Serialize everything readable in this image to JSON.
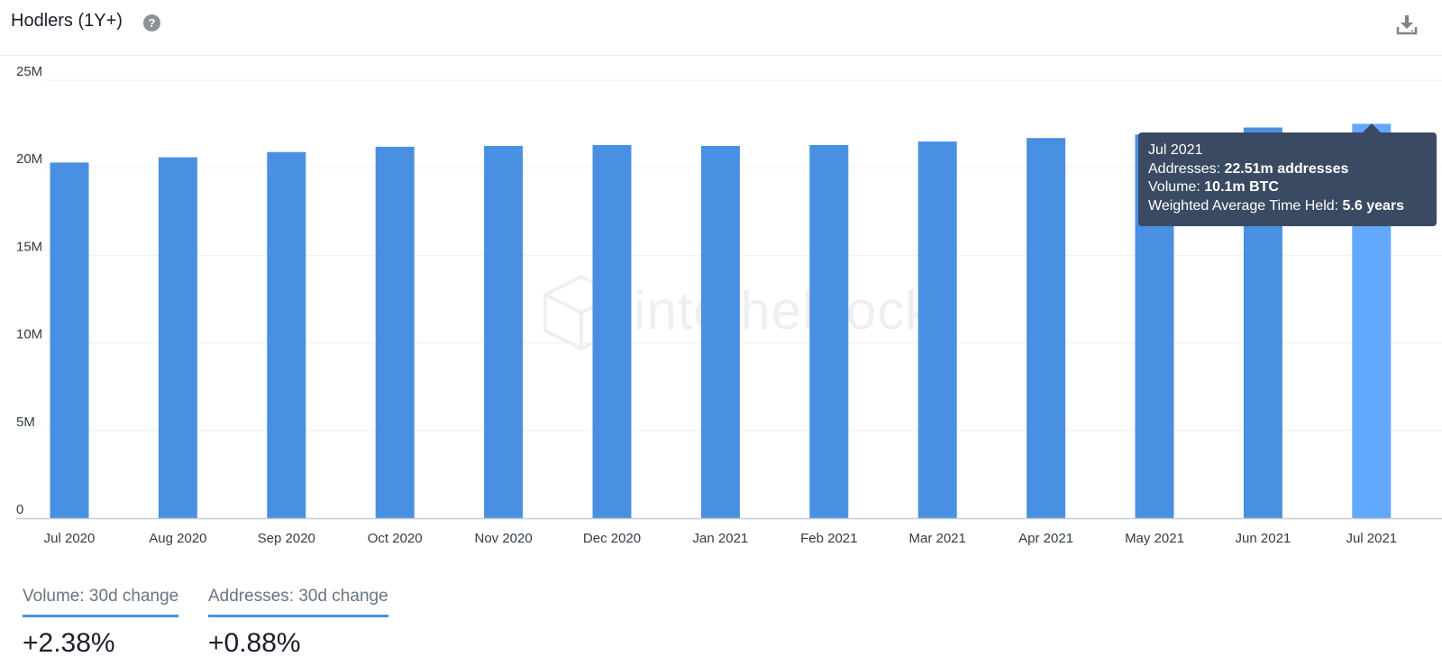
{
  "header": {
    "title": "Hodlers (1Y+)",
    "help_icon": "question-circle-icon",
    "download_icon": "download-icon"
  },
  "watermark": {
    "text": "intotheblock"
  },
  "tooltip": {
    "date": "Jul 2021",
    "addresses_label": "Addresses:",
    "addresses_value": "22.51m addresses",
    "volume_label": "Volume:",
    "volume_value": "10.1m BTC",
    "time_label": "Weighted Average Time Held:",
    "time_value": "5.6 years"
  },
  "stats": [
    {
      "label": "Volume: 30d change",
      "value": "+2.38%"
    },
    {
      "label": "Addresses: 30d change",
      "value": "+0.88%"
    }
  ],
  "chart_data": {
    "type": "bar",
    "categories": [
      "Jul 2020",
      "Aug 2020",
      "Sep 2020",
      "Oct 2020",
      "Nov 2020",
      "Dec 2020",
      "Jan 2021",
      "Feb 2021",
      "Mar 2021",
      "Apr 2021",
      "May 2021",
      "Jun 2021",
      "Jul 2021"
    ],
    "values": [
      20.3,
      20.6,
      20.9,
      21.2,
      21.25,
      21.3,
      21.25,
      21.3,
      21.5,
      21.7,
      21.9,
      22.3,
      22.51
    ],
    "value_unit": "M",
    "yticks": [
      "0",
      "5M",
      "10M",
      "15M",
      "20M",
      "25M"
    ],
    "ylim": [
      0,
      25
    ],
    "grid": true,
    "colors": {
      "bar": "#4a90e2",
      "highlight": "#62a8ff",
      "grid": "#eef0f3",
      "axis": "#c7cdd6"
    },
    "highlight_index": 12
  }
}
